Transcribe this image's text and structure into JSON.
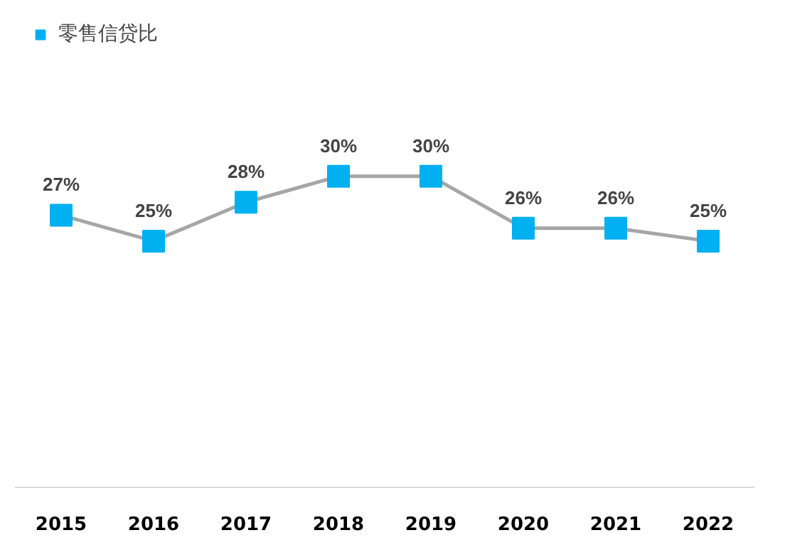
{
  "chart_data": {
    "type": "line",
    "categories": [
      "2015",
      "2016",
      "2017",
      "2018",
      "2019",
      "2020",
      "2021",
      "2022"
    ],
    "series": [
      {
        "name": "零售信贷比",
        "color": "#00b0f0",
        "values": [
          27,
          25,
          28,
          30,
          30,
          26,
          26,
          25
        ],
        "value_labels": [
          "27%",
          "25%",
          "28%",
          "30%",
          "30%",
          "26%",
          "26%",
          "25%"
        ]
      }
    ],
    "marker": "square",
    "legend": "top left",
    "grid": false
  }
}
